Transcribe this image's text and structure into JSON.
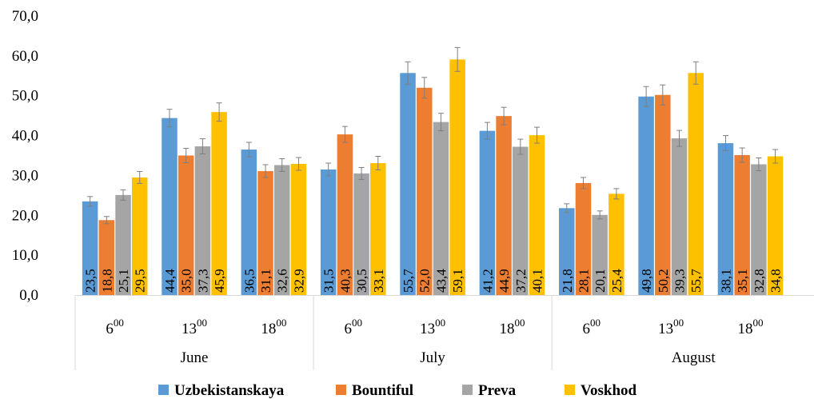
{
  "chart_data": {
    "type": "bar",
    "title": "",
    "xlabel": "",
    "ylabel": "",
    "ylim": [
      0,
      70
    ],
    "yticks": [
      "0,0",
      "10,0",
      "20,0",
      "30,0",
      "40,0",
      "50,0",
      "60,0",
      "70,0"
    ],
    "grid": false,
    "legend_position": "bottom",
    "groups": [
      {
        "label": "June",
        "times": [
          {
            "hour": "6",
            "sup": "00"
          },
          {
            "hour": "13",
            "sup": "00"
          },
          {
            "hour": "18",
            "sup": "00"
          }
        ]
      },
      {
        "label": "July",
        "times": [
          {
            "hour": "6",
            "sup": "00"
          },
          {
            "hour": "13",
            "sup": "00"
          },
          {
            "hour": "18",
            "sup": "00"
          }
        ]
      },
      {
        "label": "August",
        "times": [
          {
            "hour": "6",
            "sup": "00"
          },
          {
            "hour": "13",
            "sup": "00"
          },
          {
            "hour": "18",
            "sup": "00"
          }
        ]
      }
    ],
    "series": [
      {
        "name": "Uzbekistanskaya",
        "color": "#5B9BD5",
        "values": [
          23.5,
          44.4,
          36.5,
          31.5,
          55.7,
          41.2,
          21.8,
          49.8,
          38.1
        ],
        "labels": [
          "23,5",
          "44,4",
          "36,5",
          "31,5",
          "55,7",
          "41,2",
          "21,8",
          "49,8",
          "38,1"
        ],
        "errors": [
          1.2,
          2.2,
          1.8,
          1.6,
          2.8,
          2.1,
          1.1,
          2.5,
          1.9
        ]
      },
      {
        "name": "Bountiful",
        "color": "#ED7D31",
        "values": [
          18.8,
          35.0,
          31.1,
          40.3,
          52.0,
          44.9,
          28.1,
          50.2,
          35.1
        ],
        "labels": [
          "18,8",
          "35,0",
          "31,1",
          "40,3",
          "52,0",
          "44,9",
          "28,1",
          "50,2",
          "35,1"
        ],
        "errors": [
          0.9,
          1.8,
          1.6,
          2.0,
          2.6,
          2.2,
          1.4,
          2.5,
          1.8
        ]
      },
      {
        "name": "Preva",
        "color": "#A5A5A5",
        "values": [
          25.1,
          37.3,
          32.6,
          30.5,
          43.4,
          37.2,
          20.1,
          39.3,
          32.8
        ],
        "labels": [
          "25,1",
          "37,3",
          "32,6",
          "30,5",
          "43,4",
          "37,2",
          "20,1",
          "39,3",
          "32,8"
        ],
        "errors": [
          1.3,
          1.9,
          1.6,
          1.5,
          2.2,
          1.9,
          1.0,
          2.0,
          1.6
        ]
      },
      {
        "name": "Voskhod",
        "color": "#FFC000",
        "values": [
          29.5,
          45.9,
          32.9,
          33.1,
          59.1,
          40.1,
          25.4,
          55.7,
          34.8
        ],
        "labels": [
          "29,5",
          "45,9",
          "32,9",
          "33,1",
          "59,1",
          "40,1",
          "25,4",
          "55,7",
          "34,8"
        ],
        "errors": [
          1.5,
          2.3,
          1.6,
          1.7,
          3.0,
          2.0,
          1.3,
          2.8,
          1.7
        ]
      }
    ]
  }
}
